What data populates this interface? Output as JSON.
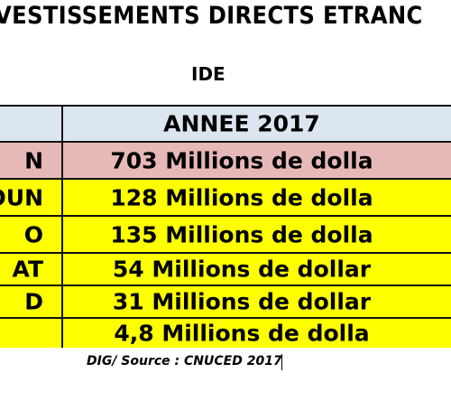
{
  "title": "VESTISSEMENTS DIRECTS ETRANC",
  "subtitle": "IDE",
  "table": {
    "header": {
      "left": "",
      "right": "ANNEE 2017"
    },
    "rows": [
      {
        "left": "N",
        "right": "703 Millions de dolla",
        "style": "hl"
      },
      {
        "left": "OUN",
        "right": "128 Millions de dolla",
        "style": "yl"
      },
      {
        "left": "O",
        "right": "135 Millions de dolla",
        "style": "yl"
      },
      {
        "left": "AT",
        "right": "54 Millions de dollar",
        "style": "yl"
      },
      {
        "left": "D",
        "right": "31 Millions de dollar",
        "style": "yl"
      },
      {
        "left": "",
        "right": "4,8 Millions de dolla",
        "style": "yl"
      }
    ]
  },
  "source": "DIG/ Source : CNUCED 2017",
  "colors": {
    "header_bg": "#dce6f1",
    "highlight_row_bg": "#e6b8b7",
    "yellow_row_bg": "#ffff00"
  }
}
